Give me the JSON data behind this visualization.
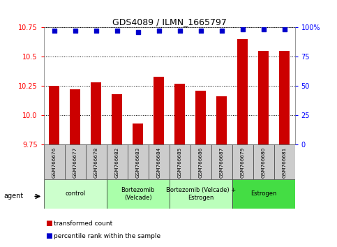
{
  "title": "GDS4089 / ILMN_1665797",
  "samples": [
    "GSM766676",
    "GSM766677",
    "GSM766678",
    "GSM766682",
    "GSM766683",
    "GSM766684",
    "GSM766685",
    "GSM766686",
    "GSM766687",
    "GSM766679",
    "GSM766680",
    "GSM766681"
  ],
  "bar_values": [
    10.25,
    10.22,
    10.28,
    10.18,
    9.93,
    10.33,
    10.27,
    10.21,
    10.16,
    10.65,
    10.55,
    10.55
  ],
  "percentile_values": [
    97,
    97,
    97,
    97,
    96,
    97,
    97,
    97,
    97,
    98,
    98,
    98
  ],
  "bar_color": "#cc0000",
  "dot_color": "#0000cc",
  "ylim_left": [
    9.75,
    10.75
  ],
  "ylim_right": [
    0,
    100
  ],
  "yticks_left": [
    9.75,
    10.0,
    10.25,
    10.5,
    10.75
  ],
  "yticks_right": [
    0,
    25,
    50,
    75,
    100
  ],
  "ytick_labels_right": [
    "0",
    "25",
    "50",
    "75",
    "100%"
  ],
  "groups": [
    {
      "label": "control",
      "start": 0,
      "end": 3,
      "color": "#ccffcc"
    },
    {
      "label": "Bortezomib\n(Velcade)",
      "start": 3,
      "end": 6,
      "color": "#aaffaa"
    },
    {
      "label": "Bortezomib (Velcade) +\nEstrogen",
      "start": 6,
      "end": 9,
      "color": "#bbffbb"
    },
    {
      "label": "Estrogen",
      "start": 9,
      "end": 12,
      "color": "#44dd44"
    }
  ],
  "agent_label": "agent",
  "legend_bar_label": "transformed count",
  "legend_dot_label": "percentile rank within the sample",
  "bar_width": 0.5,
  "bg_color": "#ffffff",
  "plot_bg_color": "#ffffff",
  "tick_bg_color": "#cccccc"
}
